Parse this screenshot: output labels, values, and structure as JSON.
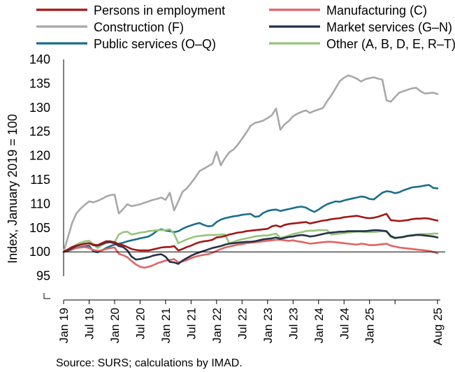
{
  "chart_data": {
    "type": "line",
    "title": "",
    "ylabel": "Index, January 2019 = 100",
    "xlabel": "",
    "ylim": [
      95,
      140
    ],
    "yticks": [
      95,
      100,
      105,
      110,
      115,
      120,
      125,
      130,
      135,
      140
    ],
    "x_start": "2019-01",
    "x_end": "2025-08",
    "xtick_labels": [
      "Jan 19",
      "Jul 19",
      "Jan 20",
      "Jul 20",
      "Jan 21",
      "Jul 21",
      "Jan 22",
      "Jul 22",
      "Jan 23",
      "Jul 23",
      "Jan 24",
      "Jul 24",
      "Jan 25",
      "Aug 25"
    ],
    "legend_placement": "top",
    "source": "Source: SURS; calculations by IMAD.",
    "series": [
      {
        "name": "Persons in employment",
        "color": "#A01818",
        "values": [
          100.0,
          100.5,
          101.0,
          101.3,
          101.5,
          101.7,
          101.8,
          101.5,
          101.4,
          101.8,
          102.2,
          102.2,
          102.0,
          101.6,
          101.4,
          101.0,
          100.6,
          100.4,
          100.3,
          100.3,
          100.3,
          100.5,
          100.7,
          100.9,
          101.0,
          101.0,
          101.2,
          100.3,
          100.6,
          101.0,
          101.3,
          101.7,
          102.0,
          102.2,
          102.3,
          102.5,
          103.0,
          103.1,
          103.3,
          103.6,
          103.8,
          104.0,
          104.1,
          104.3,
          104.4,
          104.5,
          104.6,
          104.7,
          104.8,
          105.3,
          105.5,
          105.2,
          105.6,
          105.8,
          105.9,
          106.0,
          106.1,
          106.2,
          105.9,
          106.1,
          106.3,
          106.5,
          106.6,
          106.8,
          106.9,
          107.0,
          107.2,
          107.3,
          107.4,
          107.5,
          107.3,
          107.1,
          107.0,
          107.1,
          107.3,
          107.6,
          107.9,
          106.6,
          106.5,
          106.4,
          106.5,
          106.6,
          106.8,
          106.9,
          106.9,
          107.0,
          106.9,
          106.7,
          106.5
        ]
      },
      {
        "name": "Manufacturing (C)",
        "color": "#E06464",
        "values": [
          100.0,
          100.4,
          100.6,
          100.8,
          100.9,
          101.0,
          100.8,
          100.4,
          100.2,
          100.3,
          100.6,
          100.8,
          100.9,
          99.6,
          99.3,
          98.9,
          98.1,
          97.4,
          96.9,
          96.7,
          96.9,
          97.2,
          97.6,
          97.9,
          98.2,
          98.3,
          98.5,
          97.8,
          98.0,
          98.3,
          98.7,
          99.0,
          99.2,
          99.4,
          99.5,
          99.8,
          100.2,
          100.6,
          100.9,
          101.1,
          101.3,
          101.5,
          101.6,
          101.8,
          101.9,
          102.0,
          102.1,
          102.2,
          102.3,
          102.4,
          102.5,
          102.5,
          102.4,
          102.3,
          102.4,
          102.2,
          102.1,
          101.9,
          101.7,
          101.8,
          101.9,
          102.0,
          102.1,
          102.1,
          102.0,
          101.9,
          101.8,
          101.7,
          101.6,
          101.5,
          101.7,
          101.6,
          101.4,
          101.4,
          101.5,
          101.6,
          101.7,
          101.3,
          101.1,
          100.9,
          100.8,
          100.7,
          100.6,
          100.5,
          100.4,
          100.3,
          100.2,
          100.0,
          99.7
        ]
      },
      {
        "name": "Construction (F)",
        "color": "#A8A8A8",
        "values": [
          100.0,
          103.0,
          106.0,
          108.0,
          109.0,
          109.8,
          110.5,
          110.3,
          110.6,
          111.0,
          111.5,
          111.8,
          111.9,
          108.0,
          108.9,
          109.9,
          109.5,
          109.7,
          109.9,
          110.2,
          110.5,
          110.8,
          111.0,
          111.3,
          110.8,
          112.3,
          108.6,
          110.5,
          112.5,
          113.2,
          114.3,
          115.5,
          116.8,
          117.3,
          117.8,
          118.3,
          120.8,
          118.0,
          119.5,
          120.7,
          121.3,
          122.3,
          123.5,
          124.8,
          126.2,
          126.8,
          127.0,
          127.3,
          127.8,
          128.4,
          129.8,
          125.4,
          126.5,
          127.2,
          128.2,
          128.7,
          129.1,
          129.4,
          128.9,
          129.3,
          129.6,
          129.9,
          131.3,
          132.5,
          134.0,
          135.5,
          136.2,
          136.7,
          136.4,
          136.0,
          135.4,
          135.9,
          136.1,
          136.3,
          136.0,
          135.8,
          131.5,
          131.2,
          132.2,
          133.1,
          133.4,
          133.7,
          134.0,
          134.1,
          133.4,
          132.9,
          133.0,
          133.1,
          132.8
        ]
      },
      {
        "name": "Market services (G–N)",
        "color": "#253248",
        "values": [
          100.0,
          100.4,
          100.8,
          101.2,
          101.5,
          101.7,
          101.8,
          101.4,
          101.3,
          101.6,
          102.0,
          102.0,
          101.8,
          101.2,
          101.0,
          100.3,
          99.0,
          98.4,
          98.5,
          98.7,
          98.9,
          99.2,
          99.4,
          99.5,
          99.0,
          97.9,
          97.8,
          97.5,
          98.2,
          98.7,
          99.2,
          99.6,
          99.9,
          100.2,
          100.5,
          100.8,
          101.0,
          101.2,
          101.5,
          101.7,
          101.8,
          101.9,
          102.0,
          102.1,
          102.1,
          102.2,
          102.4,
          102.6,
          102.7,
          102.8,
          103.0,
          102.7,
          102.9,
          103.1,
          103.2,
          103.4,
          103.5,
          103.4,
          103.2,
          103.3,
          103.5,
          103.7,
          103.9,
          104.0,
          104.1,
          104.2,
          104.2,
          104.3,
          104.3,
          104.3,
          104.3,
          104.3,
          104.4,
          104.5,
          104.5,
          104.4,
          104.3,
          103.3,
          102.9,
          103.0,
          103.1,
          103.3,
          103.4,
          103.5,
          103.5,
          103.4,
          103.3,
          103.2,
          103.0
        ]
      },
      {
        "name": "Public services (O–Q)",
        "color": "#1C6E8C",
        "values": [
          100.0,
          100.2,
          100.5,
          100.8,
          101.0,
          101.2,
          101.3,
          100.1,
          99.9,
          100.3,
          100.8,
          101.2,
          101.5,
          101.7,
          101.9,
          102.2,
          102.4,
          102.6,
          102.8,
          103.0,
          103.2,
          103.7,
          104.4,
          104.7,
          104.4,
          104.3,
          104.1,
          104.3,
          104.8,
          105.2,
          105.5,
          105.8,
          106.0,
          105.6,
          105.3,
          105.4,
          106.2,
          106.7,
          107.0,
          107.2,
          107.4,
          107.5,
          107.7,
          107.8,
          107.9,
          107.3,
          107.4,
          108.1,
          108.5,
          108.7,
          108.8,
          108.5,
          108.7,
          108.9,
          109.1,
          109.3,
          109.4,
          109.2,
          108.7,
          108.3,
          108.8,
          109.4,
          109.9,
          110.2,
          110.5,
          110.4,
          110.7,
          110.9,
          111.1,
          111.3,
          111.5,
          111.4,
          111.0,
          110.9,
          111.6,
          112.3,
          112.6,
          112.5,
          112.2,
          112.4,
          112.8,
          113.1,
          113.4,
          113.5,
          113.6,
          113.8,
          113.9,
          113.3,
          113.2
        ]
      },
      {
        "name": "Other (A, B, D, E, R–T)",
        "color": "#96C47A",
        "values": [
          100.0,
          100.5,
          101.0,
          101.5,
          101.9,
          102.2,
          102.3,
          101.6,
          100.8,
          101.4,
          101.8,
          102.1,
          102.0,
          103.6,
          104.1,
          104.2,
          103.6,
          103.8,
          104.0,
          104.1,
          104.3,
          104.4,
          104.5,
          104.5,
          104.5,
          104.7,
          103.8,
          101.8,
          102.2,
          102.6,
          102.9,
          103.2,
          103.3,
          103.4,
          103.5,
          103.5,
          103.5,
          103.6,
          103.6,
          101.8,
          102.1,
          102.4,
          102.6,
          102.8,
          103.0,
          103.2,
          103.3,
          103.4,
          103.4,
          103.6,
          103.8,
          102.9,
          103.1,
          103.4,
          103.7,
          103.9,
          104.1,
          104.3,
          104.4,
          104.4,
          104.5,
          104.5,
          104.5,
          103.6,
          103.7,
          103.8,
          103.9,
          104.0,
          104.1,
          104.2,
          104.2,
          104.1,
          104.1,
          104.1,
          104.2,
          104.3,
          104.2,
          103.1,
          102.8,
          103.0,
          103.2,
          103.4,
          103.5,
          103.6,
          103.7,
          103.7,
          103.7,
          103.8,
          103.8
        ]
      }
    ]
  }
}
